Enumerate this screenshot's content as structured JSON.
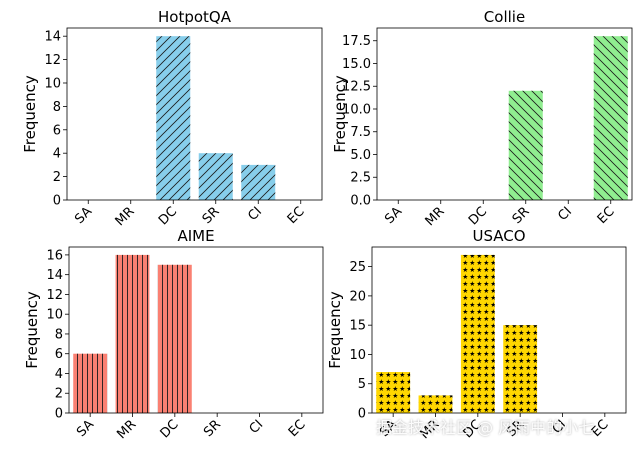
{
  "figure": {
    "watermark": "掘金技术社区 @ 风雨中的小七"
  },
  "chart_data": [
    {
      "type": "bar",
      "title": "HotpotQA",
      "ylabel": "Frequency",
      "xlabel": "",
      "categories": [
        "SA",
        "MR",
        "DC",
        "SR",
        "CI",
        "EC"
      ],
      "values": [
        0,
        0,
        14,
        4,
        3,
        0
      ],
      "ylim": [
        0,
        14.7
      ],
      "yticks": [
        "0",
        "2",
        "4",
        "6",
        "8",
        "10",
        "12",
        "14"
      ],
      "ytick_values": [
        0,
        2,
        4,
        6,
        8,
        10,
        12,
        14
      ],
      "color": "#87ceeb",
      "hatch": "diagonal-forward",
      "grid": false
    },
    {
      "type": "bar",
      "title": "Collie",
      "ylabel": "Frequency",
      "xlabel": "",
      "categories": [
        "SA",
        "MR",
        "DC",
        "SR",
        "CI",
        "EC"
      ],
      "values": [
        0,
        0,
        0,
        12,
        0,
        18
      ],
      "ylim": [
        0,
        18.9
      ],
      "yticks": [
        "0.0",
        "2.5",
        "5.0",
        "7.5",
        "10.0",
        "12.5",
        "15.0",
        "17.5"
      ],
      "ytick_values": [
        0,
        2.5,
        5,
        7.5,
        10,
        12.5,
        15,
        17.5
      ],
      "color": "#90ee90",
      "hatch": "diagonal-back",
      "grid": false
    },
    {
      "type": "bar",
      "title": "AIME",
      "ylabel": "Frequency",
      "xlabel": "",
      "categories": [
        "SA",
        "MR",
        "DC",
        "SR",
        "CI",
        "EC"
      ],
      "values": [
        6,
        16,
        15,
        0,
        0,
        0
      ],
      "ylim": [
        0,
        16.8
      ],
      "yticks": [
        "0",
        "2",
        "4",
        "6",
        "8",
        "10",
        "12",
        "14",
        "16"
      ],
      "ytick_values": [
        0,
        2,
        4,
        6,
        8,
        10,
        12,
        14,
        16
      ],
      "color": "#fa8072",
      "hatch": "vertical",
      "grid": false
    },
    {
      "type": "bar",
      "title": "USACO",
      "ylabel": "Frequency",
      "xlabel": "",
      "categories": [
        "SA",
        "MR",
        "DC",
        "SR",
        "CI",
        "EC"
      ],
      "values": [
        7,
        3,
        27,
        15,
        0,
        0
      ],
      "ylim": [
        0,
        28.35
      ],
      "yticks": [
        "0",
        "5",
        "10",
        "15",
        "20",
        "25"
      ],
      "ytick_values": [
        0,
        5,
        10,
        15,
        20,
        25
      ],
      "color": "#ffd700",
      "hatch": "stars",
      "grid": false
    }
  ]
}
